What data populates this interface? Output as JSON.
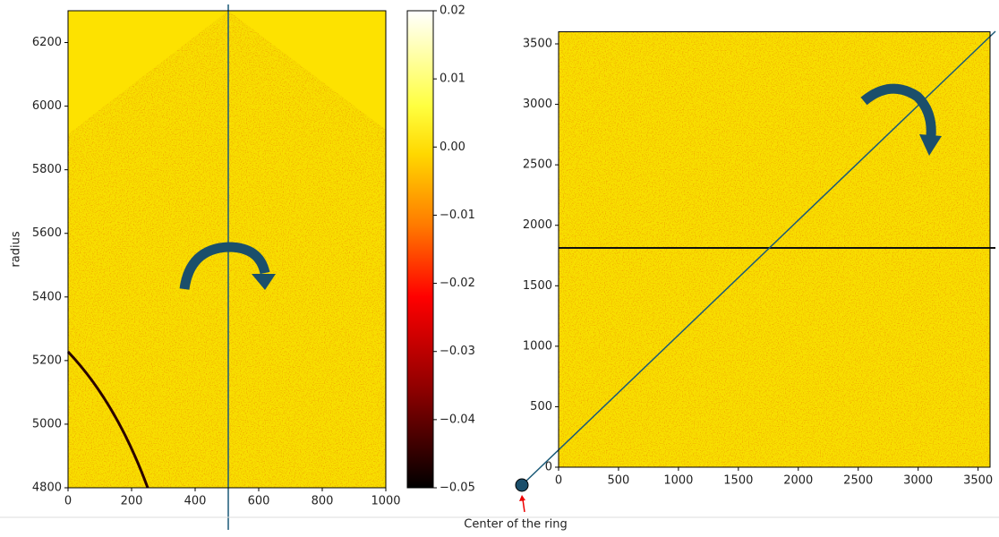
{
  "chart_data": [
    {
      "type": "heatmap",
      "ylabel": "radius",
      "xlim": [
        0,
        1000
      ],
      "xticks": [
        0,
        200,
        400,
        600,
        800,
        1000
      ],
      "ylim": [
        4800,
        6300
      ],
      "yticks": [
        4800,
        5000,
        5200,
        5400,
        5600,
        5800,
        6000,
        6200
      ],
      "colorbar": {
        "lim": [
          -0.05,
          0.02
        ],
        "ticks": [
          0.02,
          0.01,
          {
            "value": 0,
            "label": "0.00"
          },
          {
            "value": -0.01,
            "label": "−0.01"
          },
          {
            "value": -0.02,
            "label": "−0.02"
          },
          {
            "value": -0.03,
            "label": "−0.03"
          },
          {
            "value": -0.04,
            "label": "−0.04"
          },
          {
            "value": -0.05,
            "label": "−0.05"
          }
        ]
      }
    },
    {
      "type": "heatmap",
      "xlim": [
        0,
        3600
      ],
      "xticks": [
        0,
        500,
        1000,
        1500,
        2000,
        2500,
        3000,
        3500
      ],
      "ylim": [
        0,
        3600
      ],
      "yticks": [
        0,
        500,
        1000,
        1500,
        2000,
        2500,
        3000,
        3500
      ],
      "annotation": "Center of the ring"
    }
  ]
}
